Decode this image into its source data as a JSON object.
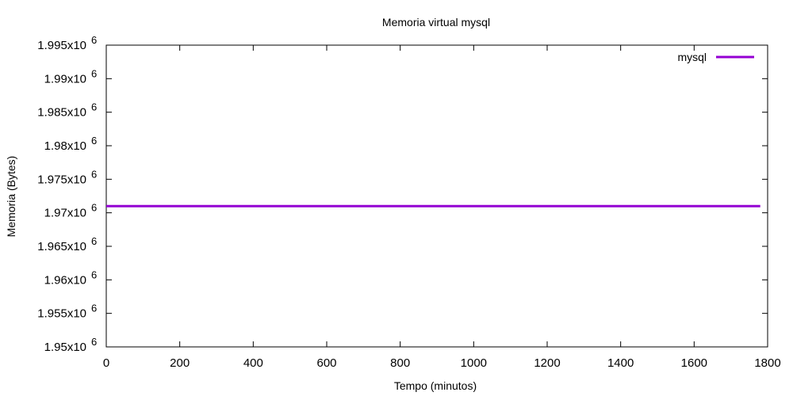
{
  "chart_data": {
    "type": "line",
    "title": "Memoria virtual mysql",
    "xlabel": "Tempo (minutos)",
    "ylabel": "Memoria (Bytes)",
    "xlim": [
      0,
      1800
    ],
    "ylim": [
      1950000,
      1995000
    ],
    "x_ticks": [
      0,
      200,
      400,
      600,
      800,
      1000,
      1200,
      1400,
      1600,
      1800
    ],
    "y_ticks": [
      {
        "value": 1950000,
        "mantissa": "1.95"
      },
      {
        "value": 1955000,
        "mantissa": "1.955"
      },
      {
        "value": 1960000,
        "mantissa": "1.96"
      },
      {
        "value": 1965000,
        "mantissa": "1.965"
      },
      {
        "value": 1970000,
        "mantissa": "1.97"
      },
      {
        "value": 1975000,
        "mantissa": "1.975"
      },
      {
        "value": 1980000,
        "mantissa": "1.98"
      },
      {
        "value": 1985000,
        "mantissa": "1.985"
      },
      {
        "value": 1990000,
        "mantissa": "1.99"
      },
      {
        "value": 1995000,
        "mantissa": "1.995"
      }
    ],
    "y_tick_suffix": "x10",
    "y_tick_exponent": "6",
    "grid": false,
    "legend_position": "top-right",
    "series": [
      {
        "name": "mysql",
        "color": "#9400d3",
        "x": [
          0,
          1780
        ],
        "y": [
          1971000,
          1971000
        ]
      }
    ]
  }
}
